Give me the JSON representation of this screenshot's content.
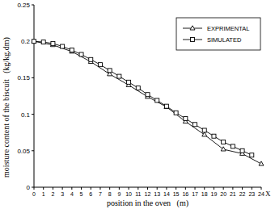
{
  "chart_data": {
    "type": "line",
    "x_label": "position in the oven   (m)",
    "y_label": "moisture content of the biscuit   (kg/kg.dm)",
    "annotations": [
      "X"
    ],
    "xlim": [
      0,
      24
    ],
    "xticks": [
      0,
      1,
      2,
      3,
      4,
      5,
      6,
      7,
      8,
      9,
      10,
      11,
      12,
      13,
      14,
      15,
      16,
      17,
      18,
      19,
      20,
      21,
      22,
      23,
      24
    ],
    "ylim": [
      0,
      0.25
    ],
    "yticks": [
      0,
      0.05,
      0.1,
      0.15,
      0.2,
      0.25
    ],
    "grid": false,
    "legend": "upper right",
    "series": [
      {
        "name": "EXPRIMENTAL",
        "color": "#000000",
        "marker": "triangle",
        "line_style": "solid",
        "x": [
          0,
          2,
          4,
          6,
          8,
          10,
          12,
          14,
          16,
          18,
          20,
          22,
          24
        ],
        "values": [
          0.2,
          0.195,
          0.186,
          0.172,
          0.155,
          0.14,
          0.124,
          0.11,
          0.09,
          0.072,
          0.052,
          0.046,
          0.032
        ]
      },
      {
        "name": "SIMULATED",
        "color": "#000000",
        "marker": "square",
        "line_style": "solid",
        "x": [
          0,
          1,
          2,
          3,
          4,
          5,
          6,
          7,
          8,
          9,
          10,
          11,
          12,
          13,
          14,
          15,
          16,
          17,
          18,
          19,
          20,
          21,
          22,
          23
        ],
        "values": [
          0.2,
          0.199,
          0.197,
          0.193,
          0.188,
          0.182,
          0.175,
          0.168,
          0.16,
          0.152,
          0.144,
          0.136,
          0.127,
          0.119,
          0.111,
          0.102,
          0.094,
          0.086,
          0.078,
          0.07,
          0.062,
          0.056,
          0.05,
          0.044
        ]
      }
    ]
  }
}
